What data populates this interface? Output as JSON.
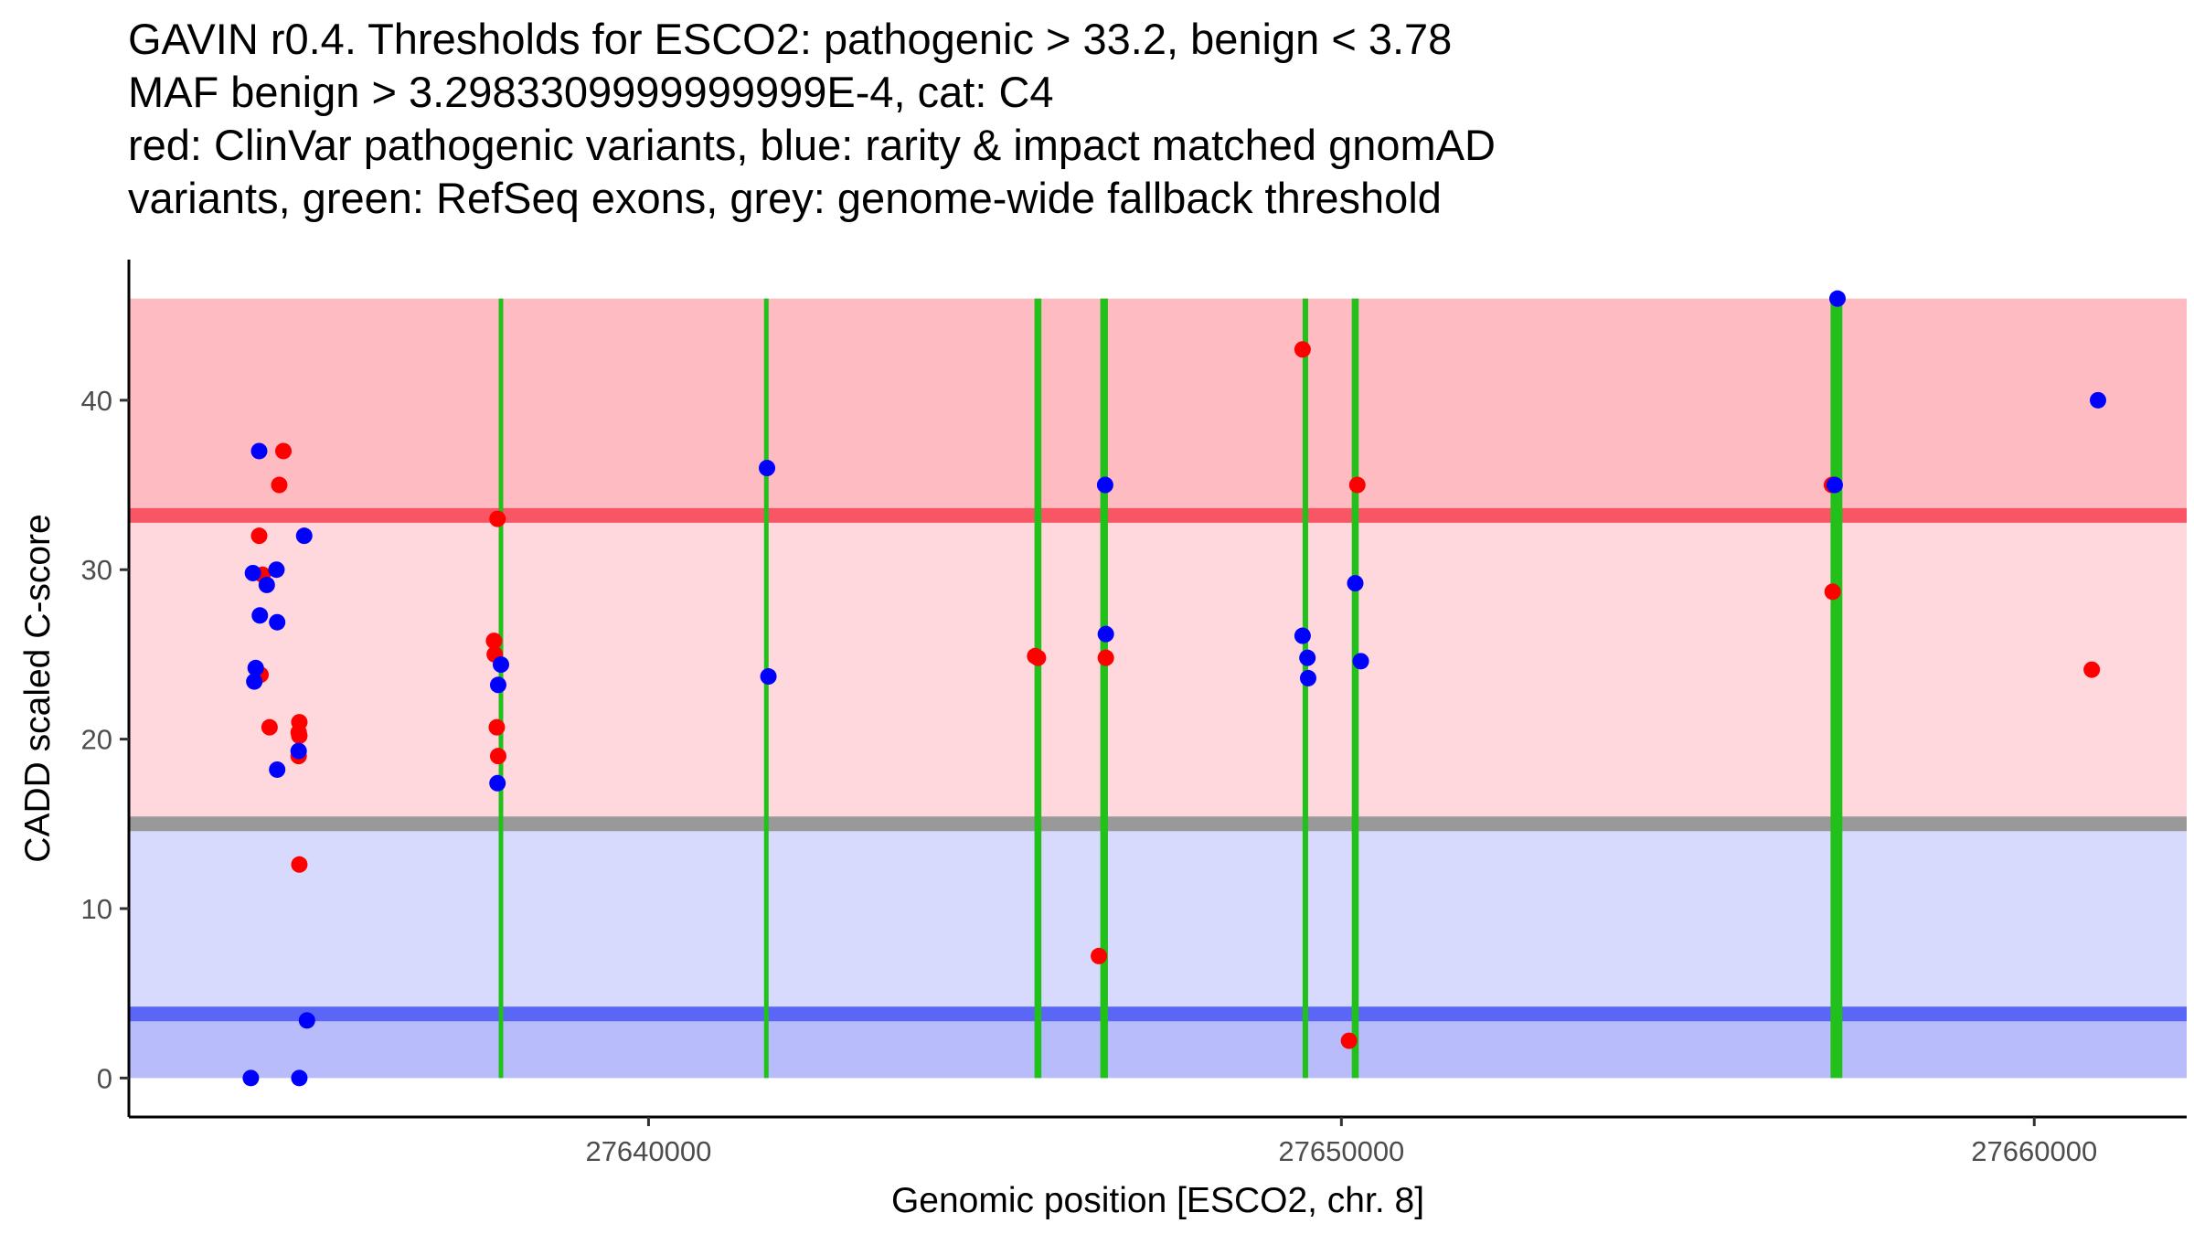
{
  "chart_data": {
    "type": "scatter",
    "title_lines": [
      "GAVIN r0.4. Thresholds for ESCO2: pathogenic > 33.2, benign < 3.78",
      "MAF benign > 3.2983309999999999E-4, cat: C4",
      "red: ClinVar pathogenic variants, blue: rarity & impact matched gnomAD",
      "variants, green: RefSeq exons, grey: genome-wide fallback threshold"
    ],
    "xlabel": "Genomic position [ESCO2, chr. 8]",
    "ylabel": "CADD scaled C-score",
    "xlim": [
      27632500,
      27662200
    ],
    "ylim": [
      -2.3,
      48.3
    ],
    "x_ticks": [
      27640000,
      27650000,
      27660000
    ],
    "x_tick_labels": [
      "27640000",
      "27650000",
      "27660000"
    ],
    "y_ticks": [
      0,
      10,
      20,
      30,
      40
    ],
    "y_tick_labels": [
      "0",
      "10",
      "20",
      "30",
      "40"
    ],
    "bands": [
      {
        "name": "pathogenic-region",
        "from": 33.2,
        "to": 46.0,
        "color": "#ffbbc2"
      },
      {
        "name": "vus-region",
        "from": 15.0,
        "to": 33.2,
        "color": "#ffd8de"
      },
      {
        "name": "benign-region-upper",
        "from": 3.78,
        "to": 15.0,
        "color": "#d7dafc"
      },
      {
        "name": "benign-region-lower",
        "from": 0.0,
        "to": 3.78,
        "color": "#b9bcfb"
      }
    ],
    "threshold_lines": [
      {
        "name": "pathogenic-threshold",
        "value": 33.2,
        "color": "#f85565"
      },
      {
        "name": "fallback-threshold",
        "value": 15.0,
        "color": "#999999"
      },
      {
        "name": "benign-threshold",
        "value": 3.78,
        "color": "#5966f6"
      }
    ],
    "exons": [
      {
        "start": 27637840,
        "end": 27637900
      },
      {
        "start": 27641670,
        "end": 27641730
      },
      {
        "start": 27645570,
        "end": 27645670
      },
      {
        "start": 27646520,
        "end": 27646630
      },
      {
        "start": 27649440,
        "end": 27649520
      },
      {
        "start": 27650150,
        "end": 27650250
      },
      {
        "start": 27657060,
        "end": 27657230
      }
    ],
    "exon_color": "#22c01a",
    "series": [
      {
        "name": "ClinVar pathogenic variants",
        "color": "#ff0000",
        "x": [
          27634380,
          27634730,
          27634670,
          27634430,
          27634400,
          27634530,
          27634960,
          27634950,
          27634960,
          27634950,
          27634960,
          27637770,
          27637780,
          27637820,
          27637810,
          27637830,
          27645580,
          27645620,
          27646500,
          27646600,
          27649440,
          27650110,
          27650230,
          27657080,
          27657090,
          27660830
        ],
        "y": [
          32.0,
          37.0,
          35.0,
          29.7,
          23.8,
          20.7,
          21.0,
          20.4,
          20.2,
          19.0,
          12.6,
          25.8,
          25.0,
          33.0,
          20.7,
          19.0,
          24.9,
          24.8,
          7.2,
          24.8,
          43.0,
          2.2,
          35.0,
          35.0,
          28.7,
          24.1
        ]
      },
      {
        "name": "Rarity & impact matched gnomAD variants",
        "color": "#0000ff",
        "x": [
          27634380,
          27634290,
          27634390,
          27634490,
          27634330,
          27634310,
          27634630,
          27634640,
          27635030,
          27634950,
          27634640,
          27635070,
          27634260,
          27634960,
          27637870,
          27637830,
          27637820,
          27641710,
          27641730,
          27646590,
          27646600,
          27649440,
          27649510,
          27649520,
          27650200,
          27650280,
          27657160,
          27657120,
          27660920
        ],
        "y": [
          37.0,
          29.8,
          27.3,
          29.1,
          24.2,
          23.4,
          30.0,
          26.9,
          32.0,
          19.3,
          18.2,
          3.4,
          0.0,
          0.0,
          24.4,
          23.2,
          17.4,
          36.0,
          23.7,
          35.0,
          26.2,
          26.1,
          24.8,
          23.6,
          29.2,
          24.6,
          46.0,
          35.0,
          40.0
        ]
      }
    ]
  }
}
